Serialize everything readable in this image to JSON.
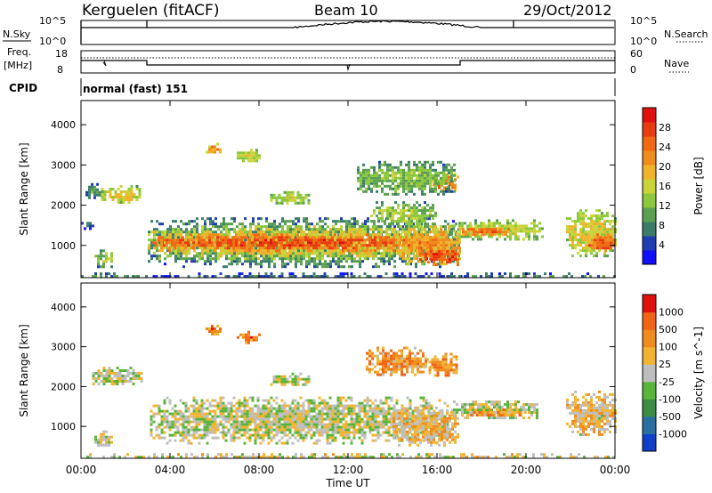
{
  "header": {
    "station": "Kerguelen (fitACF)",
    "beam": "Beam 10",
    "date": "29/Oct/2012"
  },
  "strips": {
    "nsky_label": "N.Sky",
    "nsky_ticks": [
      "10^5",
      "10^0"
    ],
    "nsearch_label": "N.Search",
    "nsearch_ticks": [
      "10^5",
      "10^0"
    ],
    "freq_label_1": "Freq.",
    "freq_label_2": "[MHz]",
    "freq_ticks": [
      "18",
      "8"
    ],
    "nave_label": "Nave",
    "nave_ticks": [
      "60",
      "0"
    ],
    "cpid_label": "CPID",
    "cpid_text": "normal (fast) 151"
  },
  "chart_data": [
    {
      "type": "heatmap",
      "title": "",
      "ylabel": "Slant Range [km]",
      "xlabel": "",
      "ylim": [
        200,
        4600
      ],
      "x_ticks": [
        "00:00",
        "04:00",
        "08:00",
        "12:00",
        "16:00",
        "20:00",
        "00:00"
      ],
      "y_ticks": [
        1000,
        2000,
        3000,
        4000
      ],
      "colorbar": {
        "label": "Power [dB]",
        "ticks": [
          "28",
          "24",
          "20",
          "16",
          "12",
          "8",
          "4"
        ],
        "colors": [
          "#1010ff",
          "#1f3cb0",
          "#3c7d6a",
          "#5aa050",
          "#8cc83c",
          "#c8d43a",
          "#f0b42c",
          "#f08c1e",
          "#f06a14",
          "#e83c10",
          "#e01010"
        ]
      },
      "regions": [
        {
          "t0": 0.0,
          "t1": 3.1,
          "r0": 250,
          "r1": 330,
          "level": 0.3
        },
        {
          "t0": 0.2,
          "t1": 0.9,
          "r0": 2200,
          "r1": 2550,
          "level": 0.3
        },
        {
          "t0": 0.9,
          "t1": 2.7,
          "r0": 2050,
          "r1": 2500,
          "level": 0.55
        },
        {
          "t0": 0.6,
          "t1": 1.4,
          "r0": 500,
          "r1": 900,
          "level": 0.45
        },
        {
          "t0": 0.0,
          "t1": 0.5,
          "r0": 1450,
          "r1": 1650,
          "level": 0.2
        },
        {
          "t0": 3.1,
          "t1": 17.2,
          "r0": 250,
          "r1": 330,
          "level": 0.25
        },
        {
          "t0": 3.0,
          "t1": 17.0,
          "r0": 500,
          "r1": 1700,
          "level": 0.35
        },
        {
          "t0": 3.0,
          "t1": 16.5,
          "r0": 700,
          "r1": 1500,
          "level": 0.62
        },
        {
          "t0": 3.2,
          "t1": 15.8,
          "r0": 900,
          "r1": 1300,
          "level": 0.88
        },
        {
          "t0": 14.2,
          "t1": 17.0,
          "r0": 550,
          "r1": 1500,
          "level": 0.7
        },
        {
          "t0": 15.2,
          "t1": 17.0,
          "r0": 550,
          "r1": 950,
          "level": 0.9
        },
        {
          "t0": 13.0,
          "t1": 16.0,
          "r0": 1500,
          "r1": 2100,
          "level": 0.45
        },
        {
          "t0": 15.8,
          "t1": 16.9,
          "r0": 2350,
          "r1": 2800,
          "level": 0.82
        },
        {
          "t0": 16.6,
          "t1": 20.7,
          "r0": 1150,
          "r1": 1650,
          "level": 0.52
        },
        {
          "t0": 17.0,
          "t1": 19.2,
          "r0": 1250,
          "r1": 1500,
          "level": 0.8
        },
        {
          "t0": 21.8,
          "t1": 24.0,
          "r0": 750,
          "r1": 1900,
          "level": 0.55
        },
        {
          "t0": 22.8,
          "t1": 24.0,
          "r0": 850,
          "r1": 1300,
          "level": 0.86
        },
        {
          "t0": 12.4,
          "t1": 16.8,
          "r0": 2300,
          "r1": 3100,
          "level": 0.4
        },
        {
          "t0": 8.5,
          "t1": 10.2,
          "r0": 2050,
          "r1": 2350,
          "level": 0.5
        },
        {
          "t0": 7.0,
          "t1": 8.0,
          "r0": 3100,
          "r1": 3400,
          "level": 0.55
        },
        {
          "t0": 5.6,
          "t1": 6.2,
          "r0": 3300,
          "r1": 3550,
          "level": 0.7
        },
        {
          "t0": 16.0,
          "t1": 24.0,
          "r0": 250,
          "r1": 330,
          "level": 0.3
        }
      ]
    },
    {
      "type": "heatmap",
      "title": "",
      "ylabel": "Slant Range [km]",
      "xlabel": "Time UT",
      "ylim": [
        200,
        4600
      ],
      "x_ticks": [
        "00:00",
        "04:00",
        "08:00",
        "12:00",
        "16:00",
        "20:00",
        "00:00"
      ],
      "y_ticks": [
        1000,
        2000,
        3000,
        4000
      ],
      "colorbar": {
        "label": "Velocity [m s^-1]",
        "ticks": [
          "1000",
          "500",
          "100",
          "25",
          "-25",
          "-100",
          "-500",
          "-1000"
        ],
        "colors": [
          "#1040c8",
          "#2a6fa0",
          "#3c8c46",
          "#5ab43c",
          "#bebebe",
          "#f0b432",
          "#f08c1e",
          "#f06414",
          "#e01010"
        ]
      },
      "regions": [
        {
          "t0": 0.5,
          "t1": 2.7,
          "r0": 2050,
          "r1": 2500,
          "level": 0.5
        },
        {
          "t0": 0.6,
          "t1": 1.4,
          "r0": 500,
          "r1": 900,
          "level": 0.5
        },
        {
          "t0": 3.1,
          "t1": 16.5,
          "r0": 600,
          "r1": 1750,
          "level": 0.5
        },
        {
          "t0": 14.0,
          "t1": 17.0,
          "r0": 500,
          "r1": 1500,
          "level": 0.62
        },
        {
          "t0": 16.6,
          "t1": 20.5,
          "r0": 1200,
          "r1": 1650,
          "level": 0.5
        },
        {
          "t0": 17.5,
          "t1": 20.0,
          "r0": 1250,
          "r1": 1450,
          "level": 0.7
        },
        {
          "t0": 15.5,
          "t1": 16.9,
          "r0": 2300,
          "r1": 2850,
          "level": 0.75
        },
        {
          "t0": 21.8,
          "t1": 24.0,
          "r0": 800,
          "r1": 1900,
          "level": 0.6
        },
        {
          "t0": 7.0,
          "t1": 8.0,
          "r0": 3100,
          "r1": 3400,
          "level": 0.8
        },
        {
          "t0": 5.6,
          "t1": 6.2,
          "r0": 3300,
          "r1": 3550,
          "level": 0.8
        },
        {
          "t0": 8.5,
          "t1": 10.2,
          "r0": 2050,
          "r1": 2350,
          "level": 0.5
        },
        {
          "t0": 12.8,
          "t1": 15.5,
          "r0": 2300,
          "r1": 3000,
          "level": 0.7
        },
        {
          "t0": 0.0,
          "t1": 24.0,
          "r0": 250,
          "r1": 330,
          "level": 0.55
        }
      ]
    }
  ]
}
